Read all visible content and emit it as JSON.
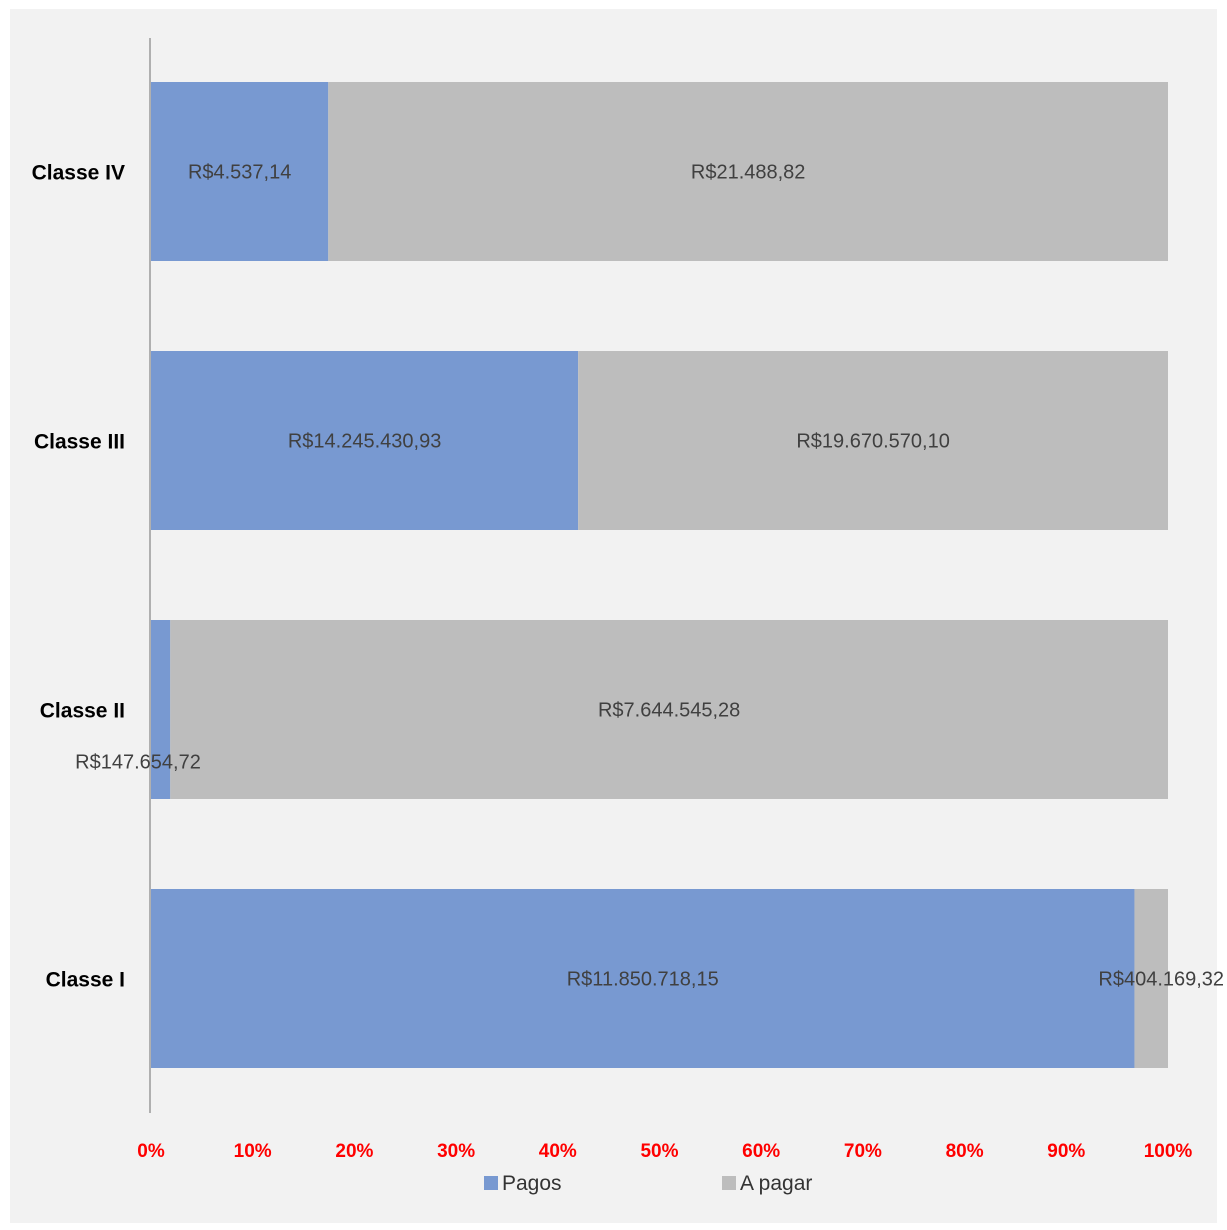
{
  "chart_data": {
    "type": "bar",
    "orientation": "horizontal",
    "stacked": "percent",
    "title": "",
    "categories": [
      "Classe I",
      "Classe II",
      "Classe III",
      "Classe IV"
    ],
    "series": [
      {
        "name": "Pagos",
        "color": "#7899d1",
        "values": [
          11850718.15,
          147654.72,
          14245430.93,
          4537.14
        ],
        "labels": [
          "R$11.850.718,15",
          "R$147.654,72",
          "R$14.245.430,93",
          "R$4.537,14"
        ]
      },
      {
        "name": "A pagar",
        "color": "#bdbdbd",
        "values": [
          404169.32,
          7644545.28,
          19670570.1,
          21488.82
        ],
        "labels": [
          "R$404.169,32",
          "R$7.644.545,28",
          "R$19.670.570,10",
          "R$21.488,82"
        ]
      }
    ],
    "x_ticks": [
      "0%",
      "10%",
      "20%",
      "30%",
      "40%",
      "50%",
      "60%",
      "70%",
      "80%",
      "90%",
      "100%"
    ],
    "xlim": [
      0,
      100
    ],
    "tick_color": "#ff0000",
    "background": "#f2f2f2",
    "grid": false,
    "legend_position": "bottom"
  }
}
